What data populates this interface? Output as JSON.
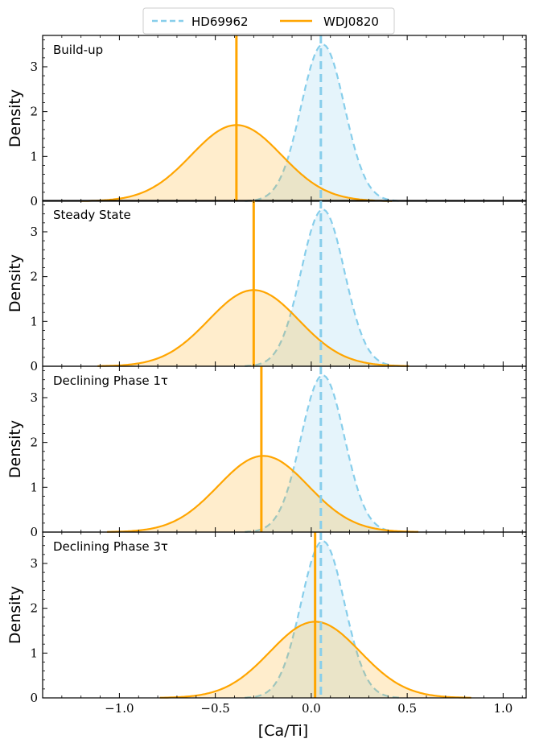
{
  "chart_data": {
    "type": "area",
    "xlabel": "[Ca/Ti]",
    "ylabel": "Density",
    "xlim": [
      -1.4,
      1.12
    ],
    "ylim": [
      0,
      3.7
    ],
    "x_ticks": [
      -1.0,
      -0.5,
      0.0,
      0.5,
      1.0
    ],
    "x_tick_labels": [
      "−1.0",
      "−0.5",
      "0.0",
      "0.5",
      "1.0"
    ],
    "y_ticks": [
      0,
      1,
      2,
      3
    ],
    "y_tick_labels": [
      "0",
      "1",
      "2",
      "3"
    ],
    "legend": {
      "placement": "top-center",
      "entries": [
        {
          "label": "HD69962",
          "color": "#87CEEB",
          "style": "dashed"
        },
        {
          "label": "WDJ0820",
          "color": "#FFA500",
          "style": "solid"
        }
      ]
    },
    "panels": [
      {
        "label": "Build-up",
        "series": [
          {
            "name": "HD69962",
            "mean": 0.06,
            "sigma": 0.113,
            "peak": 3.5,
            "vline": 0.05
          },
          {
            "name": "WDJ0820",
            "mean": -0.39,
            "sigma": 0.235,
            "peak": 1.7,
            "vline": -0.39
          }
        ]
      },
      {
        "label": "Steady State",
        "series": [
          {
            "name": "HD69962",
            "mean": 0.06,
            "sigma": 0.113,
            "peak": 3.5,
            "vline": 0.05
          },
          {
            "name": "WDJ0820",
            "mean": -0.3,
            "sigma": 0.235,
            "peak": 1.7,
            "vline": -0.3
          }
        ]
      },
      {
        "label": "Declining Phase 1τ",
        "series": [
          {
            "name": "HD69962",
            "mean": 0.06,
            "sigma": 0.113,
            "peak": 3.5,
            "vline": 0.05
          },
          {
            "name": "WDJ0820",
            "mean": -0.25,
            "sigma": 0.235,
            "peak": 1.7,
            "vline": -0.26
          }
        ]
      },
      {
        "label": "Declining Phase 3τ",
        "series": [
          {
            "name": "HD69962",
            "mean": 0.06,
            "sigma": 0.113,
            "peak": 3.5,
            "vline": 0.05
          },
          {
            "name": "WDJ0820",
            "mean": 0.02,
            "sigma": 0.235,
            "peak": 1.7,
            "vline": 0.02
          }
        ]
      }
    ]
  }
}
